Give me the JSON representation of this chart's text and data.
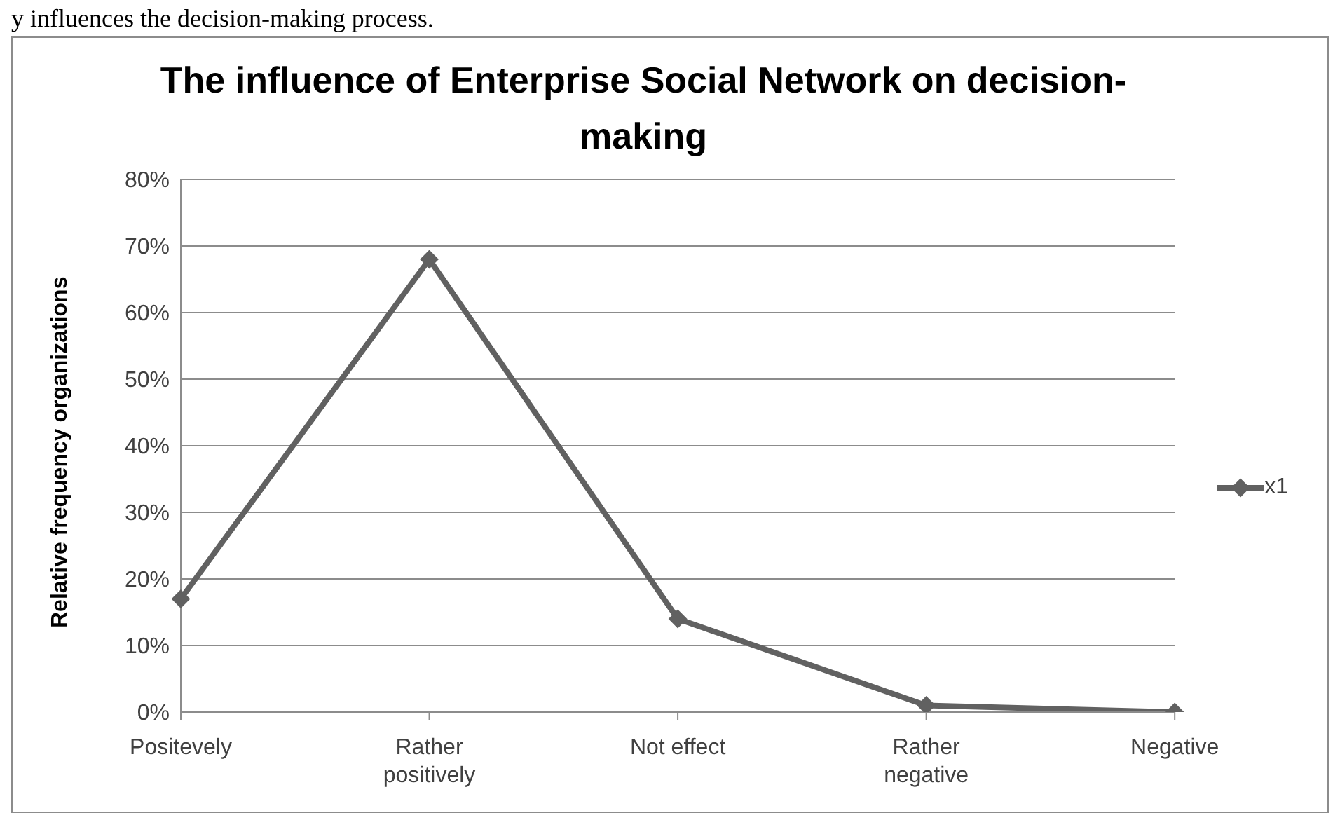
{
  "chart_data": {
    "type": "line",
    "title": "The influence of Enterprise Social Network on decision-making",
    "ylabel": "Relative frequency organizations",
    "annotations": [
      "y influences the decision-making process."
    ],
    "categories": [
      "Positevely",
      "Rather positively",
      "Not effect",
      "Rather negative",
      "Negative"
    ],
    "series": [
      {
        "name": "x1",
        "color": "#616161",
        "values": [
          17,
          68,
          14,
          1,
          0
        ]
      }
    ],
    "ylim": [
      0,
      80
    ],
    "yticks": [
      {
        "value": 0,
        "label": "0%"
      },
      {
        "value": 10,
        "label": "10%"
      },
      {
        "value": 20,
        "label": "20%"
      },
      {
        "value": 30,
        "label": "30%"
      },
      {
        "value": 40,
        "label": "40%"
      },
      {
        "value": 50,
        "label": "50%"
      },
      {
        "value": 60,
        "label": "60%"
      },
      {
        "value": 70,
        "label": "70%"
      },
      {
        "value": 80,
        "label": "80%"
      }
    ],
    "grid": "y",
    "legend": "right",
    "marker": "diamond",
    "line_style": "solid"
  }
}
